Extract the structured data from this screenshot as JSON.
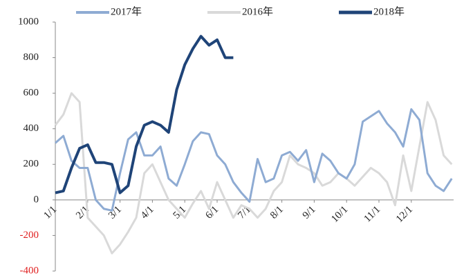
{
  "chart_data": {
    "type": "line",
    "categories": [
      "1/1",
      null,
      null,
      null,
      "2/1",
      null,
      null,
      null,
      "3/1",
      null,
      null,
      null,
      "4/1",
      null,
      null,
      null,
      "5/1",
      null,
      null,
      null,
      "6/1",
      null,
      null,
      null,
      "7/1",
      null,
      null,
      null,
      "8/1",
      null,
      null,
      null,
      "9/1",
      null,
      null,
      null,
      "10/1",
      null,
      null,
      null,
      "11/1",
      null,
      null,
      null,
      "12/1",
      null,
      null,
      null,
      null,
      null
    ],
    "series": [
      {
        "name": "2017年",
        "color": "#8eabd3",
        "values": [
          320,
          360,
          220,
          180,
          180,
          0,
          -50,
          -60,
          150,
          340,
          380,
          250,
          250,
          300,
          120,
          80,
          200,
          330,
          380,
          370,
          250,
          200,
          100,
          40,
          -10,
          230,
          100,
          120,
          250,
          270,
          220,
          280,
          100,
          260,
          220,
          150,
          120,
          200,
          440,
          470,
          500,
          430,
          380,
          300,
          510,
          450,
          150,
          80,
          50,
          120
        ]
      },
      {
        "name": "2016年",
        "color": "#d9d9d9",
        "values": [
          420,
          480,
          600,
          550,
          -100,
          -150,
          -200,
          -300,
          -250,
          -180,
          -100,
          150,
          200,
          100,
          0,
          -50,
          -100,
          -20,
          50,
          -50,
          100,
          0,
          -100,
          -30,
          -50,
          -100,
          -50,
          50,
          100,
          250,
          200,
          180,
          150,
          80,
          100,
          150,
          120,
          80,
          130,
          180,
          150,
          100,
          -30,
          250,
          50,
          300,
          550,
          450,
          250,
          200
        ]
      },
      {
        "name": "2018年",
        "color": "#1f4478",
        "values": [
          40,
          50,
          180,
          290,
          310,
          210,
          210,
          200,
          40,
          80,
          300,
          420,
          440,
          420,
          380,
          620,
          760,
          850,
          920,
          870,
          900,
          800,
          800,
          null,
          null,
          null,
          null,
          null,
          null,
          null,
          null,
          null,
          null,
          null,
          null,
          null,
          null,
          null,
          null,
          null,
          null,
          null,
          null,
          null,
          null,
          null,
          null,
          null,
          null,
          null
        ]
      }
    ],
    "ylim": [
      -400,
      1000
    ],
    "yticks": [
      -400,
      -200,
      0,
      200,
      400,
      600,
      800,
      1000
    ],
    "negative_tick_color": "#e02020",
    "grid": false,
    "legend": "top"
  }
}
